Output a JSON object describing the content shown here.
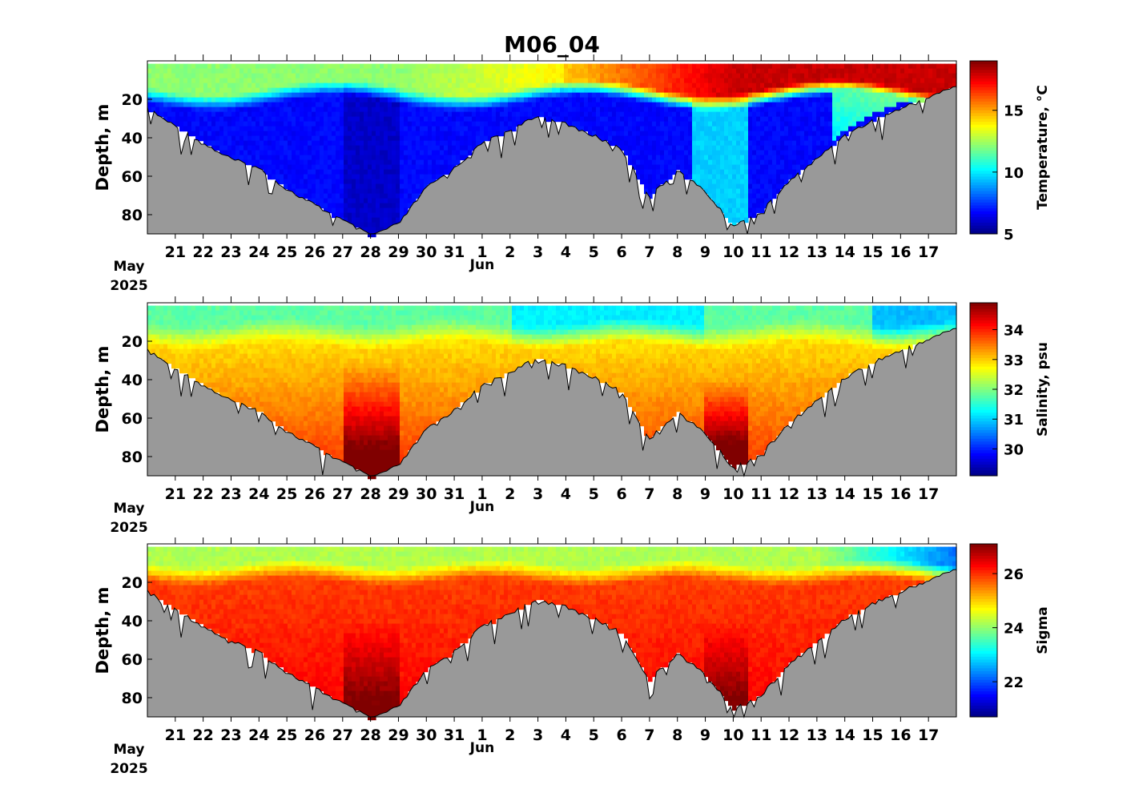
{
  "figure": {
    "title": "M06_04"
  },
  "chart_data": {
    "type": "heatmap",
    "date_start": "2025-05-20",
    "date_end": "2025-06-18",
    "date_labels": {
      "days": [
        "21",
        "22",
        "23",
        "24",
        "25",
        "26",
        "27",
        "28",
        "29",
        "30",
        "31",
        "1",
        "2",
        "3",
        "4",
        "5",
        "6",
        "7",
        "8",
        "9",
        "10",
        "11",
        "12",
        "13",
        "14",
        "15",
        "16",
        "17"
      ],
      "month_start": "May",
      "month_mid": "Jun",
      "year": "2025"
    },
    "ylabel": "Depth, m",
    "ylim": [
      90,
      0
    ],
    "yticks": [
      "20",
      "40",
      "60",
      "80"
    ],
    "bottom_depth_m": [
      [
        "2025-05-20",
        24
      ],
      [
        "2025-05-21",
        33
      ],
      [
        "2025-05-22",
        42
      ],
      [
        "2025-05-23",
        50
      ],
      [
        "2025-05-24",
        55
      ],
      [
        "2025-05-25",
        66
      ],
      [
        "2025-05-26",
        74
      ],
      [
        "2025-05-27",
        82
      ],
      [
        "2025-05-28",
        90
      ],
      [
        "2025-05-29",
        84
      ],
      [
        "2025-05-30",
        65
      ],
      [
        "2025-05-31",
        55
      ],
      [
        "2025-06-01",
        42
      ],
      [
        "2025-06-02",
        35
      ],
      [
        "2025-06-03",
        28
      ],
      [
        "2025-06-04",
        32
      ],
      [
        "2025-06-05",
        38
      ],
      [
        "2025-06-06",
        45
      ],
      [
        "2025-06-07",
        70
      ],
      [
        "2025-06-08",
        56
      ],
      [
        "2025-06-09",
        67
      ],
      [
        "2025-06-10",
        85
      ],
      [
        "2025-06-11",
        78
      ],
      [
        "2025-06-12",
        62
      ],
      [
        "2025-06-13",
        50
      ],
      [
        "2025-06-14",
        38
      ],
      [
        "2025-06-15",
        30
      ],
      [
        "2025-06-16",
        24
      ],
      [
        "2025-06-17",
        18
      ],
      [
        "2025-06-18",
        12
      ]
    ],
    "panels": [
      {
        "name": "temperature",
        "colorbar_label": "Temperature, °C",
        "clim": [
          5,
          19
        ],
        "cticks": [
          "5",
          "10",
          "15"
        ],
        "description": "Warm surface layer (>16 °C) after Jun 5; cold bottom water (~6 °C) below 20 m; intrusion ~10 °C near Jun 10"
      },
      {
        "name": "salinity",
        "colorbar_label": "Salinity, psu",
        "clim": [
          29.1,
          34.9
        ],
        "cticks": [
          "30",
          "31",
          "32",
          "33",
          "34"
        ],
        "description": "Fresher surface (~31 psu), saltier bottom (~33-34.5 psu) near May 28 and Jun 10"
      },
      {
        "name": "sigma",
        "colorbar_label": "Sigma",
        "clim": [
          20.7,
          27.1
        ],
        "cticks": [
          "22",
          "24",
          "26"
        ],
        "description": "Light surface (~22-24), dense bottom (~26-27)"
      }
    ]
  }
}
